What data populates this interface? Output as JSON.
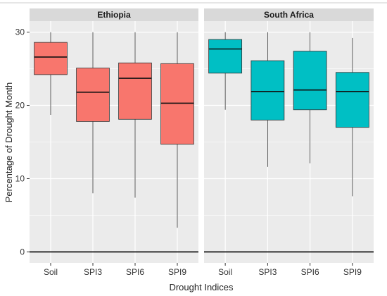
{
  "colors": {
    "panel_bg": "#ebebeb",
    "grid": "#ffffff",
    "strip_bg": "#d9d9d9",
    "median": "#111111",
    "whisker": "#333333",
    "zero_line": "#000000"
  },
  "chart_data": {
    "type": "boxplot",
    "title": "",
    "xlabel": "Drought Indices",
    "ylabel": "Percentage of Drought Month",
    "ylim": [
      -1.5,
      31.5
    ],
    "yticks": [
      0,
      10,
      20,
      30
    ],
    "hline": 0,
    "grid": true,
    "categories": [
      "Soil",
      "SPI3",
      "SPI6",
      "SPI9"
    ],
    "panels": [
      {
        "name": "Ethiopia",
        "color": "#f8766d",
        "boxes": [
          {
            "category": "Soil",
            "min": 18.7,
            "q1": 24.2,
            "median": 26.6,
            "q3": 28.6,
            "max": 30.0
          },
          {
            "category": "SPI3",
            "min": 8.0,
            "q1": 17.8,
            "median": 21.8,
            "q3": 25.1,
            "max": 30.0
          },
          {
            "category": "SPI6",
            "min": 7.4,
            "q1": 18.1,
            "median": 23.7,
            "q3": 25.8,
            "max": 30.0
          },
          {
            "category": "SPI9",
            "min": 3.3,
            "q1": 14.7,
            "median": 20.3,
            "q3": 25.7,
            "max": 30.0
          }
        ]
      },
      {
        "name": "South Africa",
        "color": "#00bfc4",
        "boxes": [
          {
            "category": "Soil",
            "min": 19.4,
            "q1": 24.4,
            "median": 27.7,
            "q3": 29.0,
            "max": 30.0
          },
          {
            "category": "SPI3",
            "min": 11.6,
            "q1": 18.0,
            "median": 21.9,
            "q3": 26.1,
            "max": 30.0
          },
          {
            "category": "SPI6",
            "min": 12.1,
            "q1": 19.4,
            "median": 22.1,
            "q3": 27.4,
            "max": 30.0
          },
          {
            "category": "SPI9",
            "min": 7.6,
            "q1": 17.0,
            "median": 21.9,
            "q3": 24.5,
            "max": 29.2
          }
        ]
      }
    ]
  }
}
